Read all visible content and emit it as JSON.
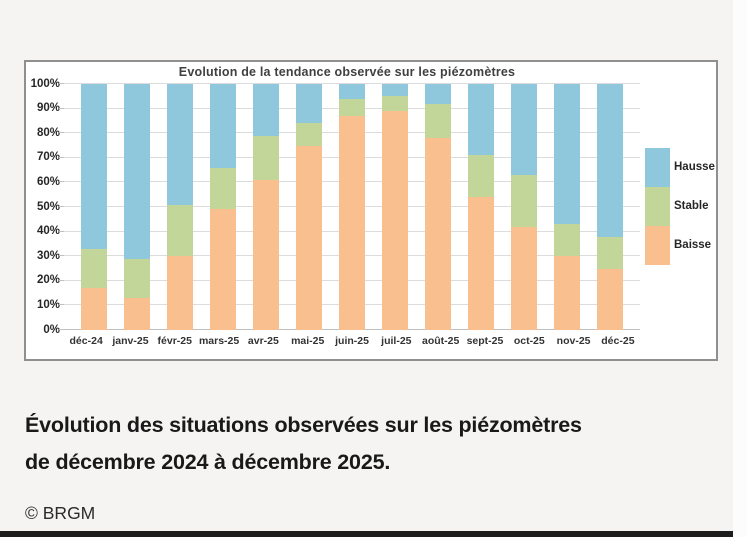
{
  "chart_data": {
    "type": "bar",
    "stacked": true,
    "title": "Evolution de la tendance observée sur les piézomètres",
    "categories": [
      "déc-24",
      "janv-25",
      "févr-25",
      "mars-25",
      "avr-25",
      "mai-25",
      "juin-25",
      "juil-25",
      "août-25",
      "sept-25",
      "oct-25",
      "nov-25",
      "déc-25"
    ],
    "series": [
      {
        "name": "Baisse",
        "color": "#FABF8F",
        "values": [
          17,
          13,
          30,
          49,
          61,
          75,
          87,
          89,
          78,
          54,
          42,
          30,
          25
        ]
      },
      {
        "name": "Stable",
        "color": "#C2D69A",
        "values": [
          16,
          16,
          21,
          17,
          18,
          9,
          7,
          6,
          14,
          17,
          21,
          13,
          13
        ]
      },
      {
        "name": "Hausse",
        "color": "#8FC7DC",
        "values": [
          67,
          71,
          49,
          34,
          21,
          16,
          6,
          5,
          8,
          29,
          37,
          57,
          62
        ]
      }
    ],
    "stack_order_bottom_to_top": [
      "Baisse",
      "Stable",
      "Hausse"
    ],
    "xlabel": "",
    "ylabel": "",
    "ylim": [
      0,
      100
    ],
    "ytick_step": 10,
    "ytick_suffix": "%",
    "grid": true,
    "legend_position": "right",
    "legend_top_to_bottom": [
      "Hausse",
      "Stable",
      "Baisse"
    ]
  },
  "caption": {
    "line1": "Évolution des situations observées sur les piézomètres",
    "line2": "de décembre 2024 à décembre 2025."
  },
  "credit": "© BRGM"
}
